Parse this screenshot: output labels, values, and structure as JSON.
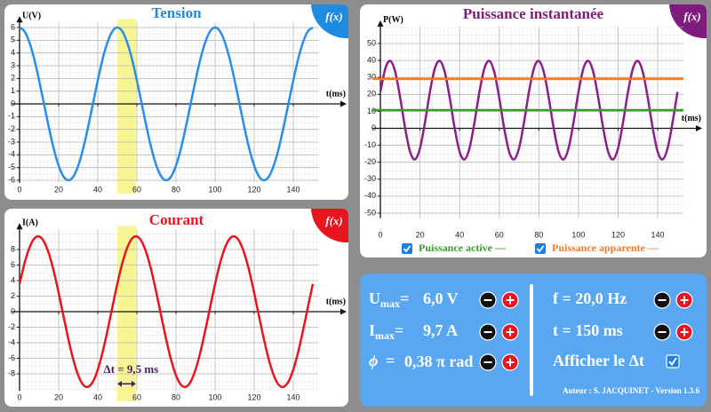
{
  "chart_data": [
    {
      "type": "line",
      "title": "Tension",
      "title_color": "#1e8be0",
      "badge": "f(x)",
      "ylabel": "U(V)",
      "xlabel": "t(ms)",
      "x": [
        0,
        2.5,
        5,
        7.5,
        10,
        12.5,
        15,
        17.5,
        20,
        22.5,
        25,
        27.5,
        30,
        32.5,
        35,
        37.5,
        40,
        42.5,
        45,
        47.5,
        50,
        52.5,
        55,
        57.5,
        60,
        62.5,
        65,
        67.5,
        70,
        72.5,
        75,
        77.5,
        80,
        82.5,
        85,
        87.5,
        90,
        92.5,
        95,
        97.5,
        100,
        102.5,
        105,
        107.5,
        110,
        112.5,
        115,
        117.5,
        120,
        122.5,
        125,
        127.5,
        130,
        132.5,
        135,
        137.5,
        140,
        142.5,
        145,
        147.5,
        150
      ],
      "series": [
        {
          "color": "#2a8ee8",
          "values": [
            6,
            5.71,
            4.85,
            3.53,
            1.85,
            0,
            -1.85,
            -3.53,
            -4.85,
            -5.71,
            -6,
            -5.71,
            -4.85,
            -3.53,
            -1.85,
            0,
            1.85,
            3.53,
            4.85,
            5.71,
            6,
            5.71,
            4.85,
            3.53,
            1.85,
            0,
            -1.85,
            -3.53,
            -4.85,
            -5.71,
            -6,
            -5.71,
            -4.85,
            -3.53,
            -1.85,
            0,
            1.85,
            3.53,
            4.85,
            5.71,
            6,
            5.71,
            4.85,
            3.53,
            1.85,
            0,
            -1.85,
            -3.53,
            -4.85,
            -5.71,
            -6,
            -5.71,
            -4.85,
            -3.53,
            -1.85,
            0,
            1.85,
            3.53,
            4.85,
            5.71,
            6
          ]
        }
      ],
      "xlim": [
        -4,
        153
      ],
      "ylim": [
        -6.2,
        6.4
      ],
      "xticks": [
        0,
        20,
        40,
        60,
        80,
        100,
        120,
        140
      ],
      "yticks": [
        -6,
        -5,
        -4,
        -3,
        -2,
        -1,
        0,
        1,
        2,
        3,
        4,
        5,
        6
      ],
      "highlight_x": [
        50,
        59.5
      ],
      "grid": true
    },
    {
      "type": "line",
      "title": "Courant",
      "title_color": "#e8141e",
      "badge": "f(x)",
      "ylabel": "I(A)",
      "xlabel": "t(ms)",
      "x": [
        0,
        2.5,
        5,
        7.5,
        10,
        12.5,
        15,
        17.5,
        20,
        22.5,
        25,
        27.5,
        30,
        32.5,
        35,
        37.5,
        40,
        42.5,
        45,
        47.5,
        50,
        52.5,
        55,
        57.5,
        60,
        62.5,
        65,
        67.5,
        70,
        72.5,
        75,
        77.5,
        80,
        82.5,
        85,
        87.5,
        90,
        92.5,
        95,
        97.5,
        100,
        102.5,
        105,
        107.5,
        110,
        112.5,
        115,
        117.5,
        120,
        122.5,
        125,
        127.5,
        130,
        132.5,
        135,
        137.5,
        140,
        142.5,
        145,
        147.5,
        150
      ],
      "series": [
        {
          "color": "#e8141e",
          "values": [
            3.57,
            6.18,
            8.19,
            9.4,
            9.68,
            9.02,
            7.47,
            5.2,
            2.41,
            -0.61,
            -3.57,
            -6.18,
            -8.19,
            -9.4,
            -9.68,
            -9.02,
            -7.47,
            -5.2,
            -2.41,
            0.61,
            3.57,
            6.18,
            8.19,
            9.4,
            9.68,
            9.02,
            7.47,
            5.2,
            2.41,
            -0.61,
            -3.57,
            -6.18,
            -8.19,
            -9.4,
            -9.68,
            -9.02,
            -7.47,
            -5.2,
            -2.41,
            0.61,
            3.57,
            6.18,
            8.19,
            9.4,
            9.68,
            9.02,
            7.47,
            5.2,
            2.41,
            -0.61,
            -3.57,
            -6.18,
            -8.19,
            -9.4,
            -9.68,
            -9.02,
            -7.47,
            -5.2,
            -2.41,
            0.61,
            3.57
          ]
        }
      ],
      "xlim": [
        -4,
        153
      ],
      "ylim": [
        -10.2,
        10.6
      ],
      "xticks": [
        0,
        20,
        40,
        60,
        80,
        100,
        120,
        140
      ],
      "yticks": [
        -8,
        -6,
        -4,
        -2,
        0,
        2,
        4,
        6,
        8
      ],
      "highlight_x": [
        50,
        59.5
      ],
      "annotation": "Δt = 9,5 ms",
      "grid": true
    },
    {
      "type": "line",
      "title": "Puissance instantanée",
      "title_color": "#7f1a7f",
      "badge": "f(x)",
      "ylabel": "P(W)",
      "xlabel": "t(ms)",
      "x": [
        0,
        2.5,
        5,
        7.5,
        10,
        12.5,
        15,
        17.5,
        20,
        22.5,
        25,
        27.5,
        30,
        32.5,
        35,
        37.5,
        40,
        42.5,
        45,
        47.5,
        50,
        52.5,
        55,
        57.5,
        60,
        62.5,
        65,
        67.5,
        70,
        72.5,
        75,
        77.5,
        80,
        82.5,
        85,
        87.5,
        90,
        92.5,
        95,
        97.5,
        100,
        102.5,
        105,
        107.5,
        110,
        112.5,
        115,
        117.5,
        120,
        122.5,
        125,
        127.5,
        130,
        132.5,
        135,
        137.5,
        140,
        142.5,
        145,
        147.5,
        150
      ],
      "series": [
        {
          "color": "#8b1e8b",
          "values": [
            21.42,
            35.28,
            39.75,
            33.13,
            17.95,
            0,
            -13.86,
            -18.33,
            -11.71,
            3.47,
            21.42,
            35.28,
            39.75,
            33.13,
            17.95,
            0,
            -13.86,
            -18.33,
            -11.71,
            3.47,
            21.42,
            35.28,
            39.75,
            33.13,
            17.95,
            0,
            -13.86,
            -18.33,
            -11.71,
            3.47,
            21.42,
            35.28,
            39.75,
            33.13,
            17.95,
            0,
            -13.86,
            -18.33,
            -11.71,
            3.47,
            21.42,
            35.28,
            39.75,
            33.13,
            17.95,
            0,
            -13.86,
            -18.33,
            -11.71,
            3.47,
            21.42,
            35.28,
            39.75,
            33.13,
            17.95,
            0,
            -13.86,
            -18.33,
            -11.71,
            3.47,
            21.42
          ]
        },
        {
          "name": "Puissance active —",
          "color": "#3c9a2c",
          "value": 10.71
        },
        {
          "name": "Puissance apparente —",
          "color": "#f07a28",
          "value": 29.1
        }
      ],
      "xlim": [
        -4,
        153
      ],
      "ylim": [
        -53,
        60
      ],
      "xticks": [
        0,
        20,
        40,
        60,
        80,
        100,
        120,
        140
      ],
      "yticks": [
        -50,
        -40,
        -30,
        -20,
        -10,
        0,
        10,
        20,
        30,
        40,
        50
      ],
      "grid": true
    }
  ],
  "controls": {
    "left": [
      {
        "symbol": "U",
        "subscript": "max",
        "sign": "=",
        "value": "6,0 V"
      },
      {
        "symbol": "I",
        "subscript": "max",
        "sign": "=",
        "value": "9,7 A"
      },
      {
        "symbol": "ϕ",
        "sign": "=",
        "value": "0,38 π rad"
      }
    ],
    "right": [
      "f = 20,0 Hz",
      "t = 150 ms",
      "Afficher le Δt"
    ],
    "author": "Auteur : S. JACQUINET - Version 1.3.6"
  }
}
